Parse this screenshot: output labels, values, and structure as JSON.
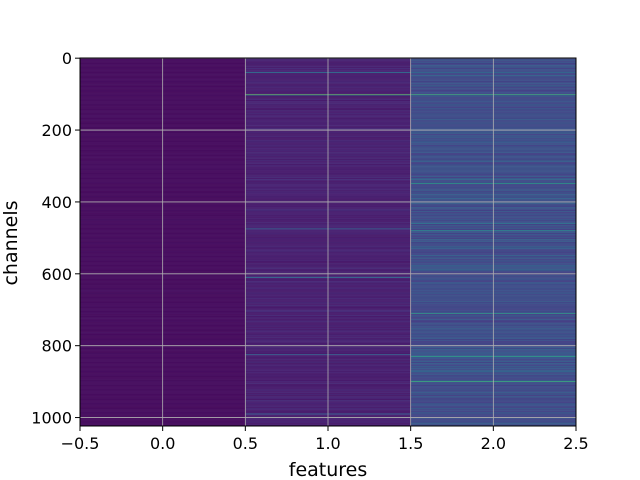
{
  "chart_data": {
    "type": "heatmap",
    "title": "",
    "xlabel": "features",
    "ylabel": "channels",
    "colormap": "viridis",
    "grid": true,
    "grid_color": "#b0b0b0",
    "n_columns": 3,
    "n_rows": 1024,
    "xlim": [
      -0.5,
      2.5
    ],
    "ylim": [
      1023.5,
      -0.5
    ],
    "y_inverted": true,
    "xticks": [
      -0.5,
      0.0,
      0.5,
      1.0,
      1.5,
      2.0,
      2.5
    ],
    "xtick_labels": [
      "−0.5",
      "0.0",
      "0.5",
      "1.0",
      "1.5",
      "2.0",
      "2.5"
    ],
    "yticks": [
      0,
      200,
      400,
      600,
      800,
      1000
    ],
    "ytick_labels": [
      "0",
      "200",
      "400",
      "600",
      "800",
      "1000"
    ],
    "columns": [
      {
        "x": 0,
        "base_level": 0.03,
        "jitter": 0.03,
        "highlight_channels": []
      },
      {
        "x": 1,
        "base_level": 0.08,
        "jitter": 0.12,
        "highlight_channels": [
          {
            "channel": 40,
            "value": 0.55
          },
          {
            "channel": 102,
            "value": 0.95
          },
          {
            "channel": 475,
            "value": 0.45
          },
          {
            "channel": 610,
            "value": 0.55
          },
          {
            "channel": 825,
            "value": 0.45
          },
          {
            "channel": 990,
            "value": 0.45
          }
        ]
      },
      {
        "x": 2,
        "base_level": 0.22,
        "jitter": 0.3,
        "highlight_channels": [
          {
            "channel": 102,
            "value": 0.9
          },
          {
            "channel": 348,
            "value": 0.78
          },
          {
            "channel": 460,
            "value": 0.6
          },
          {
            "channel": 480,
            "value": 0.7
          },
          {
            "channel": 710,
            "value": 0.8
          },
          {
            "channel": 830,
            "value": 0.82
          },
          {
            "channel": 900,
            "value": 0.9
          }
        ]
      }
    ]
  }
}
